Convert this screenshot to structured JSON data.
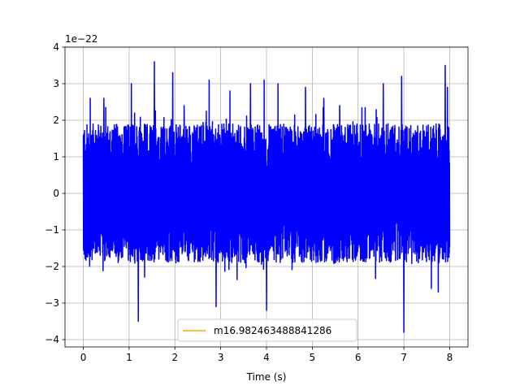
{
  "chart_data": {
    "type": "line",
    "title": "",
    "xlabel": "Time (s)",
    "ylabel": "",
    "y_offset_text": "1e−22",
    "xlim": [
      -0.4,
      8.4
    ],
    "ylim": [
      -4.2,
      4.0
    ],
    "x_ticks": [
      0,
      1,
      2,
      3,
      4,
      5,
      6,
      7,
      8
    ],
    "x_tick_labels": [
      "0",
      "1",
      "2",
      "3",
      "4",
      "5",
      "6",
      "7",
      "8"
    ],
    "y_ticks": [
      -4,
      -3,
      -2,
      -1,
      0,
      1,
      2,
      3,
      4
    ],
    "y_tick_labels": [
      "−4",
      "−3",
      "−2",
      "−1",
      "0",
      "1",
      "2",
      "3",
      "4"
    ],
    "grid": true,
    "legend_position": "lower-center",
    "series": [
      {
        "name": "",
        "color": "#0000ff",
        "x_range": [
          0,
          8
        ],
        "description": "noise",
        "envelope": {
          "typical_max": 1.9,
          "typical_min": -1.9
        },
        "peaks": [
          {
            "x": 0.15,
            "y": 2.6
          },
          {
            "x": 0.45,
            "y": 2.6
          },
          {
            "x": 1.05,
            "y": 3.0
          },
          {
            "x": 1.55,
            "y": 3.6
          },
          {
            "x": 1.2,
            "y": -3.5
          },
          {
            "x": 1.95,
            "y": 3.3
          },
          {
            "x": 2.2,
            "y": 2.4
          },
          {
            "x": 2.75,
            "y": 3.1
          },
          {
            "x": 2.9,
            "y": -3.1
          },
          {
            "x": 3.2,
            "y": 2.8
          },
          {
            "x": 3.65,
            "y": 3.0
          },
          {
            "x": 3.95,
            "y": 3.1
          },
          {
            "x": 4.0,
            "y": -3.2
          },
          {
            "x": 4.25,
            "y": 3.0
          },
          {
            "x": 4.85,
            "y": 2.9
          },
          {
            "x": 5.25,
            "y": 2.6
          },
          {
            "x": 5.6,
            "y": 2.4
          },
          {
            "x": 6.55,
            "y": 3.0
          },
          {
            "x": 6.95,
            "y": 3.2
          },
          {
            "x": 7.0,
            "y": -3.8
          },
          {
            "x": 7.6,
            "y": -2.6
          },
          {
            "x": 7.75,
            "y": -2.7
          },
          {
            "x": 7.9,
            "y": 3.5
          },
          {
            "x": 7.95,
            "y": 2.9
          }
        ]
      },
      {
        "name": "m16.982463488841286",
        "color": "#ffa500",
        "values": []
      }
    ]
  }
}
